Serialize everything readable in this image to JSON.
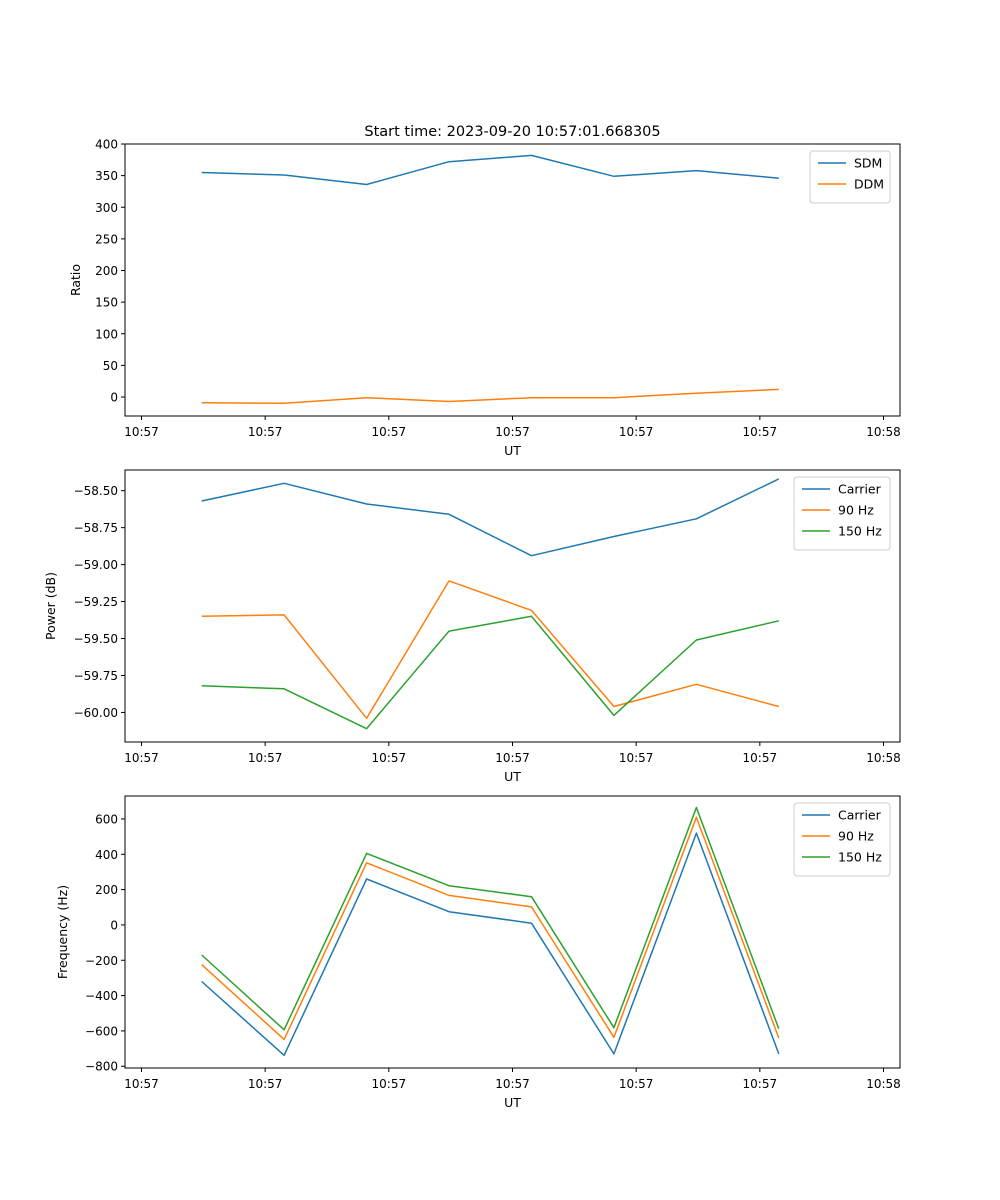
{
  "figure_title": "Start time: 2023-09-20 10:57:01.668305",
  "chart_data": [
    {
      "type": "line",
      "title": "Start time: 2023-09-20 10:57:01.668305",
      "xlabel": "UT",
      "ylabel": "Ratio",
      "xlim": [
        0,
        9.4
      ],
      "ylim": [
        -30,
        400
      ],
      "x_ticks": [
        0.2,
        1.7,
        3.2,
        4.7,
        6.2,
        7.7,
        9.2
      ],
      "x_tick_labels": [
        "10:57",
        "10:57",
        "10:57",
        "10:57",
        "10:57",
        "10:57",
        "10:58"
      ],
      "y_ticks": [
        0,
        50,
        100,
        150,
        200,
        250,
        300,
        350,
        400
      ],
      "y_tick_labels": [
        "0",
        "50",
        "100",
        "150",
        "200",
        "250",
        "300",
        "350",
        "400"
      ],
      "legend_position": "top-right",
      "x": [
        0.93,
        1.93,
        2.93,
        3.93,
        4.93,
        5.93,
        6.93,
        7.93
      ],
      "series": [
        {
          "name": "SDM",
          "color": "#1f77b4",
          "values": [
            355,
            351,
            336,
            372,
            382,
            349,
            358,
            346
          ]
        },
        {
          "name": "DDM",
          "color": "#ff7f0e",
          "values": [
            -9,
            -10,
            -1,
            -7,
            -1,
            -1,
            6,
            12
          ]
        }
      ]
    },
    {
      "type": "line",
      "xlabel": "UT",
      "ylabel": "Power (dB)",
      "xlim": [
        0,
        9.4
      ],
      "ylim": [
        -60.2,
        -58.36
      ],
      "x_ticks": [
        0.2,
        1.7,
        3.2,
        4.7,
        6.2,
        7.7,
        9.2
      ],
      "x_tick_labels": [
        "10:57",
        "10:57",
        "10:57",
        "10:57",
        "10:57",
        "10:57",
        "10:58"
      ],
      "y_ticks": [
        -60.0,
        -59.75,
        -59.5,
        -59.25,
        -59.0,
        -58.75,
        -58.5
      ],
      "y_tick_labels": [
        "−60.00",
        "−59.75",
        "−59.50",
        "−59.25",
        "−59.00",
        "−58.75",
        "−58.50"
      ],
      "legend_position": "top-right",
      "x": [
        0.93,
        1.93,
        2.93,
        3.93,
        4.93,
        5.93,
        6.93,
        7.93
      ],
      "series": [
        {
          "name": "Carrier",
          "color": "#1f77b4",
          "values": [
            -58.57,
            -58.45,
            -58.59,
            -58.66,
            -58.94,
            -58.81,
            -58.69,
            -58.42
          ]
        },
        {
          "name": "90 Hz",
          "color": "#ff7f0e",
          "values": [
            -59.35,
            -59.34,
            -60.04,
            -59.11,
            -59.31,
            -59.96,
            -59.81,
            -59.96
          ]
        },
        {
          "name": "150 Hz",
          "color": "#2ca02c",
          "values": [
            -59.82,
            -59.84,
            -60.11,
            -59.45,
            -59.35,
            -60.02,
            -59.51,
            -59.38
          ]
        }
      ]
    },
    {
      "type": "line",
      "xlabel": "UT",
      "ylabel": "Frequency (Hz)",
      "xlim": [
        0,
        9.4
      ],
      "ylim": [
        -810,
        730
      ],
      "x_ticks": [
        0.2,
        1.7,
        3.2,
        4.7,
        6.2,
        7.7,
        9.2
      ],
      "x_tick_labels": [
        "10:57",
        "10:57",
        "10:57",
        "10:57",
        "10:57",
        "10:57",
        "10:58"
      ],
      "y_ticks": [
        -800,
        -600,
        -400,
        -200,
        0,
        200,
        400,
        600
      ],
      "y_tick_labels": [
        "−800",
        "−600",
        "−400",
        "−200",
        "0",
        "200",
        "400",
        "600"
      ],
      "legend_position": "top-right",
      "x": [
        0.93,
        1.93,
        2.93,
        3.93,
        4.93,
        5.93,
        6.93,
        7.93
      ],
      "series": [
        {
          "name": "Carrier",
          "color": "#1f77b4",
          "values": [
            -320,
            -738,
            260,
            75,
            10,
            -730,
            520,
            -730
          ]
        },
        {
          "name": "90 Hz",
          "color": "#ff7f0e",
          "values": [
            -225,
            -648,
            352,
            167,
            102,
            -636,
            610,
            -640
          ]
        },
        {
          "name": "150 Hz",
          "color": "#2ca02c",
          "values": [
            -170,
            -594,
            405,
            222,
            160,
            -582,
            665,
            -588
          ]
        }
      ]
    }
  ]
}
